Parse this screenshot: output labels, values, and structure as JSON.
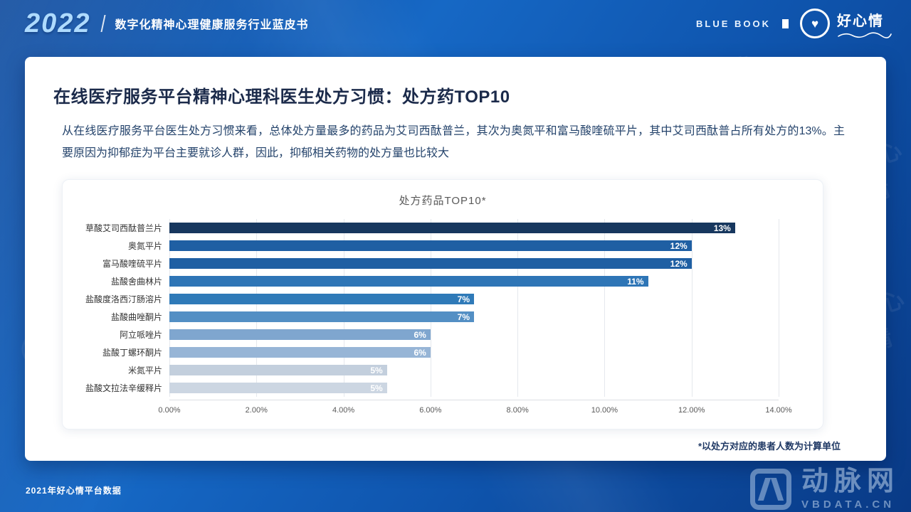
{
  "icons": {
    "heart": "♥"
  },
  "page": {
    "header": {
      "year": "2022",
      "subtitle": "数字化精神心理健康服务行业蓝皮书",
      "blue_book": "BLUE BOOK",
      "brand_name": "好心情"
    },
    "card": {
      "title": "在线医疗服务平台精神心理科医生处方习惯：处方药TOP10",
      "paragraph": "从在线医疗服务平台医生处方习惯来看，总体处方量最多的药品为艾司西酞普兰，其次为奥氮平和富马酸喹硫平片，其中艾司西酞普占所有处方的13%。主要原因为抑郁症为平台主要就诊人群，因此，抑郁相关药物的处方量也比较大",
      "footnote": "*以处方对应的患者人数为计算单位"
    },
    "footer": {
      "source": "2021年好心情平台数据",
      "watermark_line1": "动脉网",
      "watermark_line2": "VBDATA.CN"
    }
  },
  "chart_data": {
    "type": "bar",
    "orientation": "horizontal",
    "title": "处方药品TOP10*",
    "categories": [
      "草酸艾司西酞普兰片",
      "奥氮平片",
      "富马酸喹硫平片",
      "盐酸舍曲林片",
      "盐酸度洛西汀肠溶片",
      "盐酸曲唑酮片",
      "阿立哌唑片",
      "盐酸丁螺环酮片",
      "米氮平片",
      "盐酸文拉法辛缓释片"
    ],
    "values": [
      13,
      12,
      12,
      11,
      7,
      7,
      6,
      6,
      5,
      5
    ],
    "labels": [
      "13%",
      "12%",
      "12%",
      "11%",
      "7%",
      "7%",
      "6%",
      "6%",
      "5%",
      "5%"
    ],
    "bar_colors": [
      "#17375e",
      "#1f5fa3",
      "#1f5fa3",
      "#2e75b6",
      "#2f7ab8",
      "#538fc4",
      "#7fa6cf",
      "#97b5d6",
      "#c3cfdd",
      "#ccd6e2"
    ],
    "xlim": [
      0,
      14
    ],
    "x_ticks": [
      "0.00%",
      "2.00%",
      "4.00%",
      "6.00%",
      "8.00%",
      "10.00%",
      "12.00%",
      "14.00%"
    ],
    "grid": true,
    "xlabel": "",
    "ylabel": ""
  }
}
